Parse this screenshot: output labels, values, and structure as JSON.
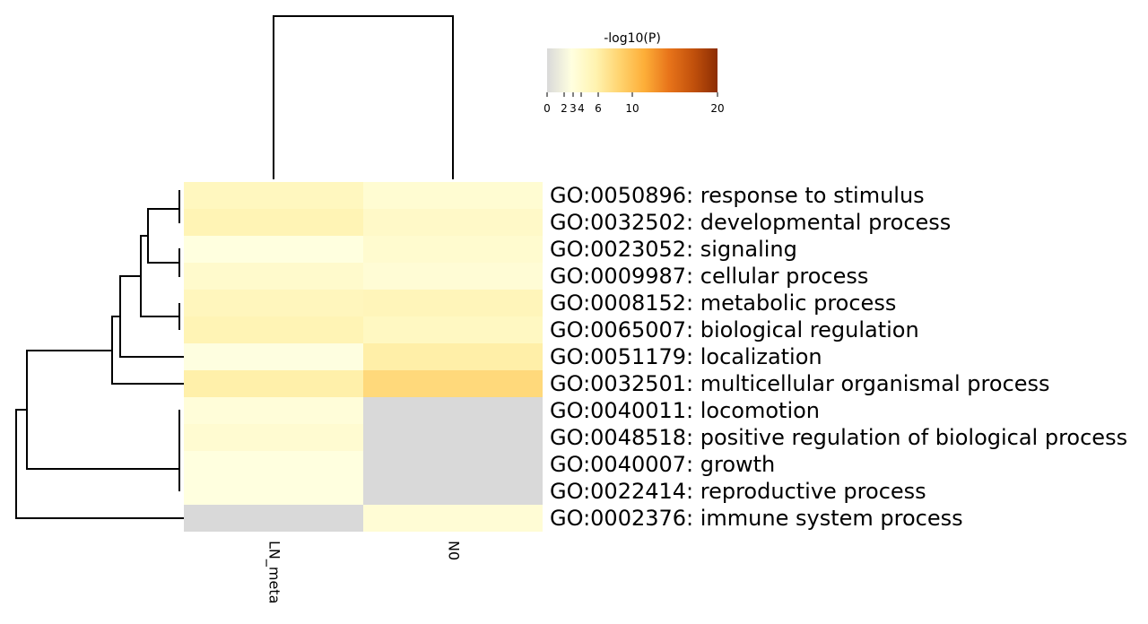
{
  "chart_data": {
    "type": "heatmap",
    "colorbar": {
      "title": "-log10(P)",
      "ticks": [
        0,
        2,
        3,
        4,
        6,
        10,
        20
      ],
      "tick_labels": [
        "0",
        "2",
        "3",
        "4",
        "6",
        "10",
        "20"
      ],
      "range": [
        0,
        20
      ],
      "colors": [
        "#d9d9d9",
        "#ffffe0",
        "#fff3b0",
        "#ffd36e",
        "#fdae38",
        "#e8741a",
        "#c2510c",
        "#8c2d04"
      ]
    },
    "columns": [
      "LN_meta",
      "N0"
    ],
    "rows": [
      "GO:0050896: response to stimulus",
      "GO:0032502: developmental process",
      "GO:0023052: signaling",
      "GO:0009987: cellular process",
      "GO:0008152: metabolic process",
      "GO:0065007: biological regulation",
      "GO:0051179: localization",
      "GO:0032501: multicellular organismal process",
      "GO:0040011: locomotion",
      "GO:0048518: positive regulation of biological process",
      "GO:0040007: growth",
      "GO:0022414: reproductive process",
      "GO:0002376: immune system process"
    ],
    "values": [
      [
        4.2,
        3.0
      ],
      [
        4.8,
        3.6
      ],
      [
        2.2,
        3.2
      ],
      [
        3.4,
        2.8
      ],
      [
        4.3,
        4.5
      ],
      [
        4.8,
        4.0
      ],
      [
        2.1,
        5.5
      ],
      [
        5.4,
        7.5
      ],
      [
        2.6,
        0
      ],
      [
        3.1,
        0
      ],
      [
        2.2,
        0
      ],
      [
        2.2,
        0
      ],
      [
        0,
        2.8
      ]
    ]
  }
}
